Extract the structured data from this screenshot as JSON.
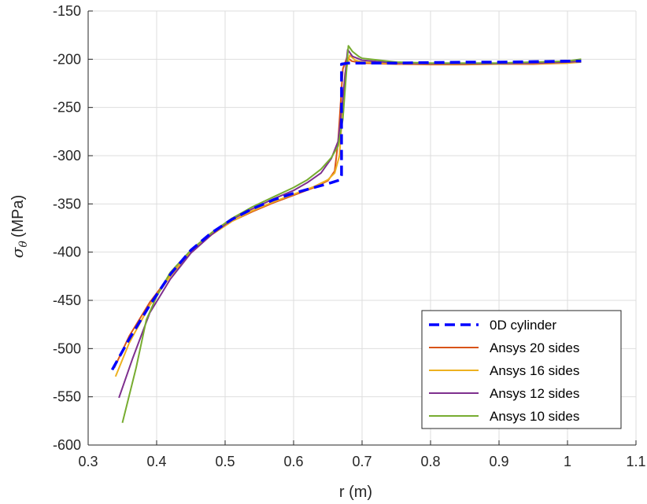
{
  "chart_data": {
    "type": "line",
    "title": "",
    "xlabel": "r (m)",
    "ylabel": "σ_θ (MPa)",
    "ylabel_main": "σ",
    "ylabel_sub": "θ",
    "ylabel_units": "(MPa)",
    "xlim": [
      0.3,
      1.1
    ],
    "ylim": [
      -600,
      -150
    ],
    "xticks": [
      0.3,
      0.4,
      0.5,
      0.6,
      0.7,
      0.8,
      0.9,
      1.0,
      1.1
    ],
    "xtick_labels": [
      "0.3",
      "0.4",
      "0.5",
      "0.6",
      "0.7",
      "0.8",
      "0.9",
      "1",
      "1.1"
    ],
    "yticks": [
      -150,
      -200,
      -250,
      -300,
      -350,
      -400,
      -450,
      -500,
      -550,
      -600
    ],
    "ytick_labels": [
      "-150",
      "-200",
      "-250",
      "-300",
      "-350",
      "-400",
      "-450",
      "-500",
      "-550",
      "-600"
    ],
    "grid": true,
    "legend_position": "bottom-right",
    "series": [
      {
        "name": "0D cylinder",
        "color": "#0000ff",
        "style": "dashed",
        "x": [
          0.335,
          0.36,
          0.39,
          0.42,
          0.45,
          0.48,
          0.51,
          0.54,
          0.57,
          0.6,
          0.63,
          0.655,
          0.668,
          0.67,
          0.67,
          0.68,
          0.7,
          0.75,
          0.8,
          0.85,
          0.9,
          0.95,
          1.0,
          1.02
        ],
        "y": [
          -522,
          -490,
          -455,
          -423,
          -398,
          -380,
          -366,
          -355,
          -346,
          -339,
          -333,
          -328,
          -325,
          -320,
          -205,
          -204,
          -204,
          -204,
          -203.5,
          -203,
          -203,
          -202.5,
          -202,
          -202
        ]
      },
      {
        "name": "Ansys 20 sides",
        "color": "#d95319",
        "style": "solid",
        "x": [
          0.338,
          0.36,
          0.39,
          0.42,
          0.45,
          0.48,
          0.51,
          0.54,
          0.57,
          0.6,
          0.63,
          0.65,
          0.66,
          0.665,
          0.672,
          0.678,
          0.685,
          0.7,
          0.75,
          0.8,
          0.85,
          0.9,
          0.95,
          1.0
        ],
        "y": [
          -520,
          -487,
          -452,
          -424,
          -400,
          -382,
          -368,
          -358,
          -349,
          -341,
          -333,
          -326,
          -316,
          -285,
          -210,
          -198,
          -202,
          -204,
          -205,
          -205.5,
          -205.5,
          -205,
          -205,
          -204
        ]
      },
      {
        "name": "Ansys 16 sides",
        "color": "#edb120",
        "style": "solid",
        "x": [
          0.34,
          0.36,
          0.39,
          0.42,
          0.45,
          0.48,
          0.51,
          0.54,
          0.57,
          0.6,
          0.63,
          0.65,
          0.66,
          0.667,
          0.675,
          0.682,
          0.69,
          0.7,
          0.75,
          0.8,
          0.85,
          0.9,
          0.95,
          1.0,
          1.02
        ],
        "y": [
          -529,
          -494,
          -455,
          -425,
          -400,
          -382,
          -368,
          -357,
          -348,
          -340,
          -332,
          -325,
          -318,
          -300,
          -215,
          -196,
          -201,
          -203,
          -204.5,
          -205,
          -205,
          -205,
          -204.5,
          -204,
          -203
        ]
      },
      {
        "name": "Ansys 12 sides",
        "color": "#7e2f8e",
        "style": "solid",
        "x": [
          0.345,
          0.365,
          0.39,
          0.42,
          0.45,
          0.48,
          0.51,
          0.54,
          0.57,
          0.6,
          0.62,
          0.64,
          0.655,
          0.665,
          0.672,
          0.679,
          0.686,
          0.7,
          0.75,
          0.8,
          0.85,
          0.9,
          0.95,
          1.0,
          1.02
        ],
        "y": [
          -551,
          -510,
          -463,
          -428,
          -401,
          -382,
          -366,
          -355,
          -345,
          -336,
          -328,
          -318,
          -303,
          -285,
          -240,
          -190,
          -197,
          -201,
          -204,
          -204.5,
          -204.5,
          -204.5,
          -204,
          -203,
          -202
        ]
      },
      {
        "name": "Ansys 10 sides",
        "color": "#77ac30",
        "style": "solid",
        "x": [
          0.35,
          0.37,
          0.385,
          0.4,
          0.42,
          0.45,
          0.48,
          0.51,
          0.54,
          0.57,
          0.6,
          0.62,
          0.64,
          0.655,
          0.665,
          0.672,
          0.68,
          0.686,
          0.695,
          0.7,
          0.75,
          0.8,
          0.85,
          0.9,
          0.95,
          1.0,
          1.02
        ],
        "y": [
          -577,
          -520,
          -470,
          -446,
          -421,
          -398,
          -380,
          -365,
          -353,
          -343,
          -333,
          -325,
          -314,
          -302,
          -290,
          -262,
          -186,
          -192,
          -197,
          -199,
          -203,
          -204,
          -204,
          -204,
          -203,
          -202,
          -200
        ]
      }
    ]
  }
}
